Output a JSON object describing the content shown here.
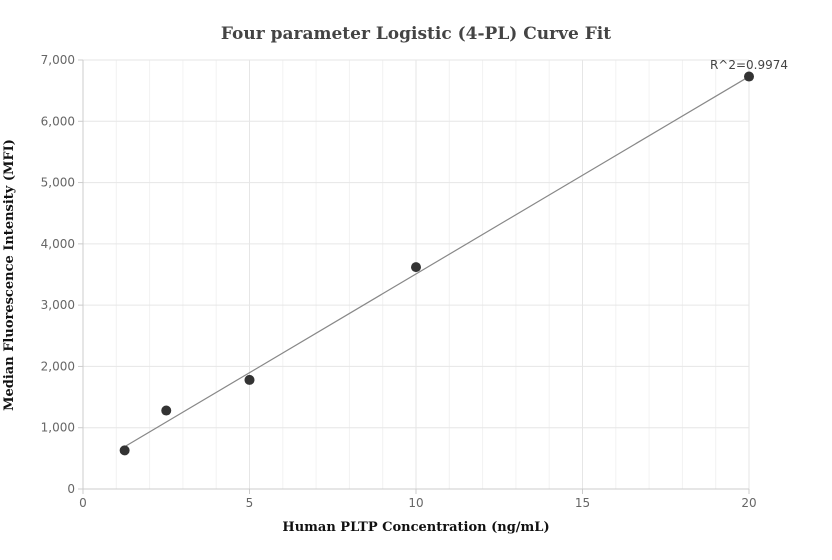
{
  "chart_data": {
    "type": "scatter",
    "title": "Four parameter Logistic (4-PL) Curve Fit",
    "xlabel": "Human PLTP Concentration (ng/mL)",
    "ylabel": "Median Fluorescence Intensity (MFI)",
    "xlim": [
      0,
      20
    ],
    "ylim": [
      0,
      7000
    ],
    "x_ticks": [
      0,
      5,
      10,
      15,
      20
    ],
    "y_ticks": [
      0,
      1000,
      2000,
      3000,
      4000,
      5000,
      6000,
      7000
    ],
    "x_tick_labels": [
      "0",
      "5",
      "10",
      "15",
      "20"
    ],
    "y_tick_labels": [
      "0",
      "1,000",
      "2,000",
      "3,000",
      "4,000",
      "5,000",
      "6,000",
      "7,000"
    ],
    "points": [
      {
        "x": 1.25,
        "y": 630
      },
      {
        "x": 2.5,
        "y": 1280
      },
      {
        "x": 5,
        "y": 1780
      },
      {
        "x": 10,
        "y": 3620
      },
      {
        "x": 20,
        "y": 6730
      }
    ],
    "fit_line": [
      {
        "x": 1.25,
        "y": 690
      },
      {
        "x": 20,
        "y": 6730
      }
    ],
    "annotation": "R^2=0.9974",
    "grid": true,
    "colors": {
      "point": "#333333",
      "line": "#888888",
      "grid": "#e6e6e6",
      "minor_grid": "#f2f2f2",
      "axis": "#cccccc"
    }
  }
}
